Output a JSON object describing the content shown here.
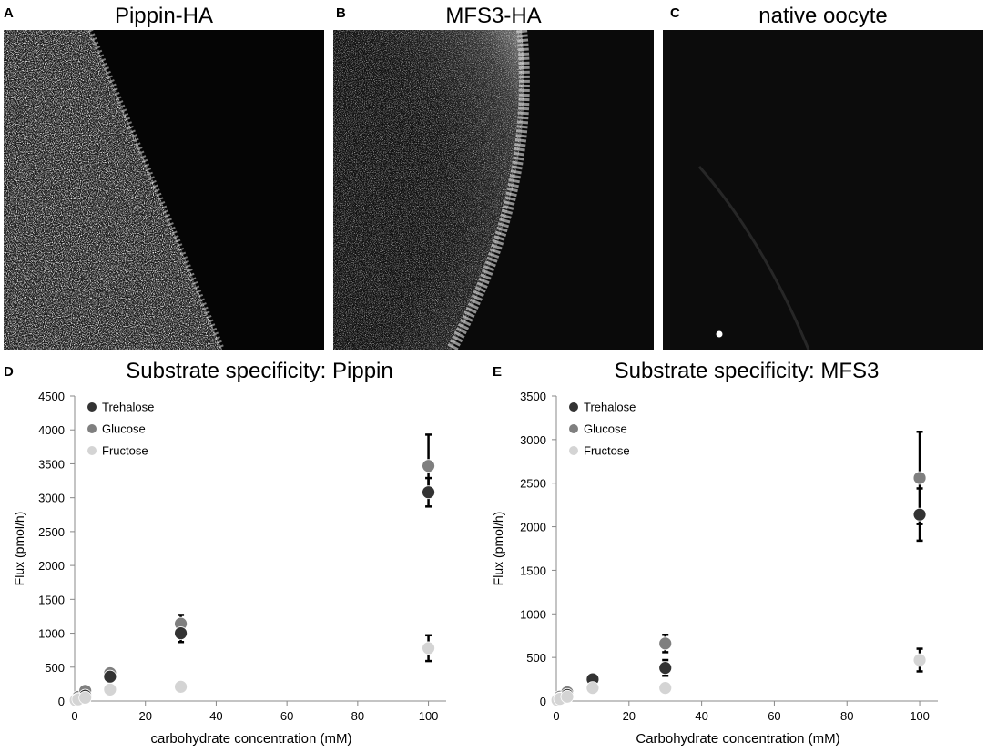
{
  "panels": {
    "a": {
      "letter": "A",
      "title": "Pippin-HA"
    },
    "b": {
      "letter": "B",
      "title": "MFS3-HA"
    },
    "c": {
      "letter": "C",
      "title": "native oocyte"
    },
    "d": {
      "letter": "D"
    },
    "e": {
      "letter": "E"
    }
  },
  "colors": {
    "Trehalose": "#333333",
    "Glucose": "#7f7f7f",
    "Fructose": "#d4d4d4"
  },
  "chart_data": [
    {
      "type": "scatter",
      "title": "Substrate specificity: Pippin",
      "xlabel": "carbohydrate concentration (mM)",
      "ylabel": "Flux (pmol/h)",
      "xlim": [
        0,
        105
      ],
      "ylim": [
        0,
        4500
      ],
      "xticks": [
        0,
        20,
        40,
        60,
        80,
        100
      ],
      "yticks": [
        0,
        500,
        1000,
        1500,
        2000,
        2500,
        3000,
        3500,
        4000,
        4500
      ],
      "legend": "top-left",
      "series": [
        {
          "name": "Trehalose",
          "x": [
            0.3,
            1,
            3,
            10,
            30,
            100
          ],
          "y": [
            10,
            30,
            80,
            360,
            1000,
            3080
          ],
          "err": [
            0,
            0,
            0,
            50,
            130,
            210
          ]
        },
        {
          "name": "Glucose",
          "x": [
            0.3,
            1,
            3,
            10,
            30,
            100
          ],
          "y": [
            20,
            60,
            150,
            410,
            1140,
            3470
          ],
          "err": [
            0,
            0,
            0,
            0,
            130,
            460
          ]
        },
        {
          "name": "Fructose",
          "x": [
            0.3,
            1,
            3,
            10,
            30,
            100
          ],
          "y": [
            10,
            25,
            50,
            170,
            210,
            780
          ],
          "err": [
            0,
            0,
            0,
            0,
            0,
            190
          ]
        }
      ]
    },
    {
      "type": "scatter",
      "title": "Substrate specificity: MFS3",
      "xlabel": "Carbohydrate concentration (mM)",
      "ylabel": "Flux (pmol/h)",
      "xlim": [
        0,
        105
      ],
      "ylim": [
        0,
        3500
      ],
      "xticks": [
        0,
        20,
        40,
        60,
        80,
        100
      ],
      "yticks": [
        0,
        500,
        1000,
        1500,
        2000,
        2500,
        3000,
        3500
      ],
      "legend": "top-left",
      "series": [
        {
          "name": "Trehalose",
          "x": [
            0.3,
            1,
            3,
            10,
            30,
            100
          ],
          "y": [
            10,
            30,
            70,
            250,
            380,
            2140
          ],
          "err": [
            0,
            0,
            0,
            0,
            90,
            300
          ]
        },
        {
          "name": "Glucose",
          "x": [
            0.3,
            1,
            3,
            10,
            30,
            100
          ],
          "y": [
            20,
            50,
            100,
            150,
            660,
            2560
          ],
          "err": [
            0,
            0,
            0,
            0,
            100,
            530
          ]
        },
        {
          "name": "Fructose",
          "x": [
            0.3,
            1,
            3,
            10,
            30,
            100
          ],
          "y": [
            10,
            25,
            50,
            150,
            150,
            470
          ],
          "err": [
            0,
            0,
            0,
            0,
            0,
            130
          ]
        }
      ]
    }
  ]
}
